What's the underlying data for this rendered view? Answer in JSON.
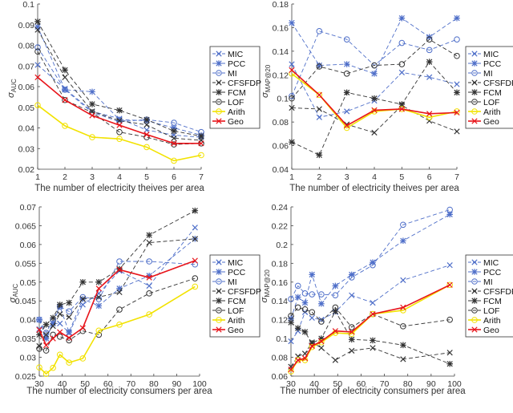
{
  "chart_data": [
    {
      "type": "line",
      "xlabel": "The number of electricity theives per area",
      "ylabel": {
        "symbol": "σ",
        "sub": "AUC"
      },
      "x": [
        1,
        2,
        3,
        4,
        5,
        6,
        7
      ],
      "xlim": [
        1,
        7
      ],
      "ylim": [
        0.02,
        0.1
      ],
      "xticks": [
        1,
        2,
        3,
        4,
        5,
        6,
        7
      ],
      "yticks": [
        0.02,
        0.03,
        0.04,
        0.05,
        0.06,
        0.07,
        0.08,
        0.09,
        0.1
      ],
      "legend": "right",
      "grid": false,
      "series": [
        {
          "name": "MIC",
          "values": [
            0.0705,
            0.059,
            0.048,
            0.0445,
            0.039,
            0.0365,
            0.0355
          ]
        },
        {
          "name": "PCC",
          "values": [
            0.089,
            0.0585,
            0.0575,
            0.044,
            0.0435,
            0.04,
            0.0365
          ]
        },
        {
          "name": "MI",
          "values": [
            0.079,
            0.0585,
            0.0475,
            0.043,
            0.044,
            0.0425,
            0.038
          ]
        },
        {
          "name": "CFSFDP",
          "values": [
            0.0875,
            0.0645,
            0.048,
            0.0435,
            0.0415,
            0.035,
            0.034
          ]
        },
        {
          "name": "FCM",
          "values": [
            0.0915,
            0.068,
            0.0515,
            0.0485,
            0.044,
            0.0385,
            0.036
          ]
        },
        {
          "name": "LOF",
          "values": [
            0.077,
            0.0535,
            0.0475,
            0.038,
            0.0355,
            0.032,
            0.0325
          ]
        },
        {
          "name": "Arith",
          "values": [
            0.051,
            0.041,
            0.0355,
            0.0347,
            0.0307,
            0.0241,
            0.0268
          ]
        },
        {
          "name": "Geo",
          "values": [
            0.0645,
            0.0535,
            0.046,
            0.0413,
            0.0368,
            0.0325,
            0.0325
          ]
        }
      ]
    },
    {
      "type": "line",
      "xlabel": "The number of electricity theives per area",
      "ylabel": {
        "symbol": "σ",
        "sub": "MAP@20"
      },
      "x": [
        1,
        2,
        3,
        4,
        5,
        6,
        7
      ],
      "xlim": [
        1,
        7
      ],
      "ylim": [
        0.04,
        0.18
      ],
      "xticks": [
        1,
        2,
        3,
        4,
        5,
        6,
        7
      ],
      "yticks": [
        0.04,
        0.06,
        0.08,
        0.1,
        0.12,
        0.14,
        0.16,
        0.18
      ],
      "legend": "right",
      "grid": false,
      "series": [
        {
          "name": "MIC",
          "values": [
            0.129,
            0.084,
            0.089,
            0.098,
            0.122,
            0.118,
            0.112
          ]
        },
        {
          "name": "PCC",
          "values": [
            0.164,
            0.128,
            0.129,
            0.121,
            0.168,
            0.152,
            0.168
          ]
        },
        {
          "name": "MI",
          "values": [
            0.102,
            0.157,
            0.15,
            0.128,
            0.147,
            0.141,
            0.15
          ]
        },
        {
          "name": "CFSFDP",
          "values": [
            0.092,
            0.091,
            0.078,
            0.071,
            0.094,
            0.081,
            0.072
          ]
        },
        {
          "name": "FCM",
          "values": [
            0.063,
            0.052,
            0.105,
            0.1,
            0.095,
            0.131,
            0.105
          ]
        },
        {
          "name": "LOF",
          "values": [
            0.1,
            0.127,
            0.121,
            0.128,
            0.129,
            0.15,
            0.136
          ]
        },
        {
          "name": "Arith",
          "values": [
            0.121,
            0.103,
            0.075,
            0.089,
            0.091,
            0.084,
            0.089
          ]
        },
        {
          "name": "Geo",
          "values": [
            0.124,
            0.103,
            0.077,
            0.09,
            0.091,
            0.087,
            0.088
          ]
        }
      ]
    },
    {
      "type": "line",
      "xlabel": "The number of electricity consumers per area",
      "ylabel": {
        "symbol": "σ",
        "sub": "AUC"
      },
      "x": [
        30,
        33,
        36,
        39,
        43,
        49,
        56,
        65,
        78,
        98
      ],
      "xlim": [
        30,
        100
      ],
      "ylim": [
        0.025,
        0.07
      ],
      "xticks": [
        30,
        40,
        50,
        60,
        70,
        80,
        90,
        100
      ],
      "yticks": [
        0.025,
        0.03,
        0.035,
        0.04,
        0.045,
        0.05,
        0.055,
        0.06,
        0.065,
        0.07
      ],
      "legend": "right",
      "grid": false,
      "series": [
        {
          "name": "MIC",
          "values": [
            0.0375,
            0.0355,
            0.039,
            0.039,
            0.0365,
            0.044,
            0.047,
            0.053,
            0.049,
            0.0645
          ]
        },
        {
          "name": "PCC",
          "values": [
            0.04,
            0.035,
            0.039,
            0.0435,
            0.0367,
            0.0455,
            0.0437,
            0.0483,
            0.0517,
            0.0615
          ]
        },
        {
          "name": "MI",
          "values": [
            0.04,
            0.0365,
            0.04,
            0.0435,
            0.0422,
            0.046,
            0.0455,
            0.0555,
            0.0555,
            0.0547
          ]
        },
        {
          "name": "CFSFDP",
          "values": [
            0.033,
            0.036,
            0.0383,
            0.0415,
            0.0407,
            0.0455,
            0.046,
            0.0473,
            0.0605,
            0.0615
          ]
        },
        {
          "name": "FCM",
          "values": [
            0.036,
            0.0387,
            0.0405,
            0.044,
            0.0445,
            0.05,
            0.05,
            0.0535,
            0.0625,
            0.069
          ]
        },
        {
          "name": "LOF",
          "values": [
            0.0323,
            0.0318,
            0.036,
            0.0355,
            0.0345,
            0.037,
            0.036,
            0.0427,
            0.047,
            0.051
          ]
        },
        {
          "name": "Arith",
          "values": [
            0.0273,
            0.0256,
            0.0272,
            0.0307,
            0.0286,
            0.0297,
            0.0371,
            0.0387,
            0.0414,
            0.0488
          ]
        },
        {
          "name": "Geo",
          "values": [
            0.0373,
            0.0332,
            0.035,
            0.0367,
            0.0352,
            0.0378,
            0.0483,
            0.0533,
            0.0512,
            0.0557
          ]
        }
      ]
    },
    {
      "type": "line",
      "xlabel": "The number of electricity consumers per area",
      "ylabel": {
        "symbol": "σ",
        "sub": "MAP@20"
      },
      "x": [
        30,
        33,
        36,
        39,
        43,
        49,
        56,
        65,
        78,
        98
      ],
      "xlim": [
        30,
        100
      ],
      "ylim": [
        0.06,
        0.24
      ],
      "xticks": [
        30,
        40,
        50,
        60,
        70,
        80,
        90,
        100
      ],
      "yticks": [
        0.06,
        0.08,
        0.1,
        0.12,
        0.14,
        0.16,
        0.18,
        0.2,
        0.22,
        0.24
      ],
      "legend": "right",
      "grid": false,
      "series": [
        {
          "name": "MIC",
          "values": [
            0.097,
            0.108,
            0.128,
            0.122,
            0.12,
            0.128,
            0.146,
            0.138,
            0.162,
            0.178
          ]
        },
        {
          "name": "PCC",
          "values": [
            0.121,
            0.144,
            0.138,
            0.168,
            0.137,
            0.156,
            0.168,
            0.181,
            0.204,
            0.232
          ]
        },
        {
          "name": "MI",
          "values": [
            0.142,
            0.156,
            0.148,
            0.147,
            0.147,
            0.146,
            0.165,
            0.178,
            0.221,
            0.237
          ]
        },
        {
          "name": "CFSFDP",
          "values": [
            0.07,
            0.081,
            0.084,
            0.096,
            0.09,
            0.077,
            0.087,
            0.09,
            0.078,
            0.085
          ]
        },
        {
          "name": "FCM",
          "values": [
            0.117,
            0.111,
            0.107,
            0.095,
            0.1,
            0.129,
            0.099,
            0.098,
            0.093,
            0.073
          ]
        },
        {
          "name": "LOF",
          "values": [
            0.124,
            0.133,
            0.131,
            0.128,
            0.118,
            0.133,
            0.112,
            0.126,
            0.113,
            0.12
          ]
        },
        {
          "name": "Arith",
          "values": [
            0.065,
            0.077,
            0.077,
            0.091,
            0.096,
            0.106,
            0.105,
            0.126,
            0.13,
            0.157
          ]
        },
        {
          "name": "Geo",
          "values": [
            0.067,
            0.077,
            0.079,
            0.092,
            0.097,
            0.108,
            0.107,
            0.126,
            0.133,
            0.157
          ]
        }
      ]
    }
  ],
  "series_style": {
    "MIC": {
      "color": "#4f6fc9",
      "dash": true,
      "marker": "x"
    },
    "PCC": {
      "color": "#4f6fc9",
      "dash": true,
      "marker": "star"
    },
    "MI": {
      "color": "#4f6fc9",
      "dash": true,
      "marker": "circle"
    },
    "CFSFDP": {
      "color": "#333333",
      "dash": true,
      "marker": "x"
    },
    "FCM": {
      "color": "#333333",
      "dash": true,
      "marker": "star"
    },
    "LOF": {
      "color": "#333333",
      "dash": true,
      "marker": "circle"
    },
    "Arith": {
      "color": "#f2e200",
      "dash": false,
      "marker": "circle"
    },
    "Geo": {
      "color": "#e8141a",
      "dash": false,
      "marker": "x"
    }
  }
}
